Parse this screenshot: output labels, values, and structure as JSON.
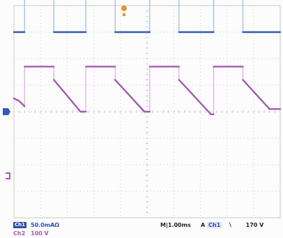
{
  "colors": {
    "background": "#fbfcfb",
    "grid": "#c9cbc9",
    "channel1": "#2e5cb8",
    "channel1_light": "#9fb6e8",
    "channel2": "#a35bb0",
    "channel2_light": "#d5b0dc",
    "trigger": "#e8923a"
  },
  "icons": {
    "trigger_position": "trigger-position-marker",
    "ch1_ground": "channel-1-ground-marker",
    "ch2_ground": "channel-2-ground-marker",
    "ch1_edge": "rising-edge-icon"
  },
  "readouts": {
    "ch1_label": "Ch1",
    "ch1_scale": "50.0mAΩ",
    "ch2_label": "Ch2",
    "ch2_scale": "100 V",
    "timebase": "M|1.00ms",
    "trigger_A": "A",
    "trigger_source": "Ch1",
    "trigger_edge": "\\",
    "trigger_level": "170 V"
  },
  "chart_data": {
    "type": "line",
    "grid": true,
    "divisions": {
      "horizontal": 10,
      "vertical": 8
    },
    "series": [
      {
        "waveform": "square",
        "x": [
          0.0,
          0.4,
          0.4,
          1.5,
          1.5,
          2.7,
          2.7,
          3.8,
          3.8,
          5.1,
          5.1,
          6.2,
          6.2,
          7.5,
          7.5,
          8.6,
          8.6,
          10.0
        ],
        "y": [
          3.0,
          3.0,
          5.0,
          5.0,
          3.0,
          3.0,
          5.0,
          5.0,
          3.0,
          3.0,
          5.0,
          5.0,
          3.0,
          3.0,
          5.0,
          5.0,
          3.0,
          3.0
        ]
      },
      {
        "waveform": "pulsed-decay",
        "x": [
          0.0,
          0.2,
          0.3,
          0.4,
          0.4,
          1.5,
          1.5,
          2.5,
          2.7,
          2.7,
          3.8,
          3.8,
          4.9,
          5.1,
          5.1,
          6.2,
          6.2,
          7.4,
          7.5,
          7.5,
          8.6,
          8.6,
          9.6,
          10.0
        ],
        "y": [
          0.5,
          0.4,
          0.3,
          0.2,
          1.7,
          1.7,
          1.2,
          0.0,
          0.0,
          1.7,
          1.7,
          1.2,
          0.0,
          0.0,
          1.7,
          1.7,
          1.2,
          -0.1,
          -0.1,
          1.7,
          1.7,
          1.2,
          0.1,
          0.1
        ]
      }
    ]
  }
}
